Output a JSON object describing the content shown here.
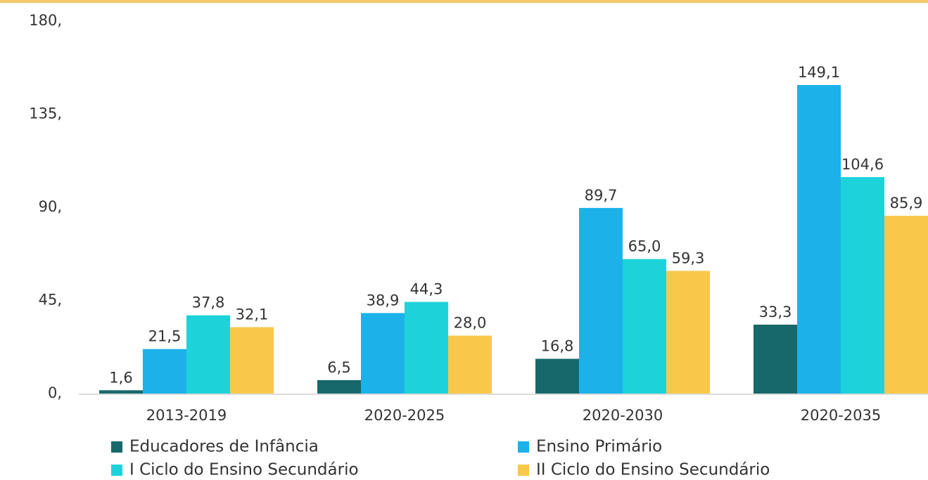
{
  "chart_data": {
    "type": "bar",
    "categories": [
      "2013-2019",
      "2020-2025",
      "2020-2030",
      "2020-2035"
    ],
    "series": [
      {
        "name": "Educadores de Infância",
        "color": "#17686a",
        "values": [
          1.6,
          6.5,
          16.8,
          33.3
        ],
        "value_labels": [
          "1,6",
          "6,5",
          "16,8",
          "33,3"
        ]
      },
      {
        "name": "Ensino Primário",
        "color": "#1cb1e9",
        "values": [
          21.5,
          38.9,
          89.7,
          149.1
        ],
        "value_labels": [
          "21,5",
          "38,9",
          "89,7",
          "149,1"
        ]
      },
      {
        "name": "I Ciclo do Ensino Secundário",
        "color": "#1ed2da",
        "values": [
          37.8,
          44.3,
          65.0,
          104.6
        ],
        "value_labels": [
          "37,8",
          "44,3",
          "65,0",
          "104,6"
        ]
      },
      {
        "name": "II Ciclo do Ensino Secundário",
        "color": "#f9c84b",
        "values": [
          32.1,
          28.0,
          59.3,
          85.9
        ],
        "value_labels": [
          "32,1",
          "28,0",
          "59,3",
          "85,9"
        ]
      }
    ],
    "ylim": [
      0,
      180
    ],
    "yticks": [
      {
        "value": 0,
        "label": "0,"
      },
      {
        "value": 45,
        "label": "45,"
      },
      {
        "value": 90,
        "label": "90,"
      },
      {
        "value": 135,
        "label": "135,"
      },
      {
        "value": 180,
        "label": "180,"
      }
    ],
    "legend": "bottom"
  }
}
